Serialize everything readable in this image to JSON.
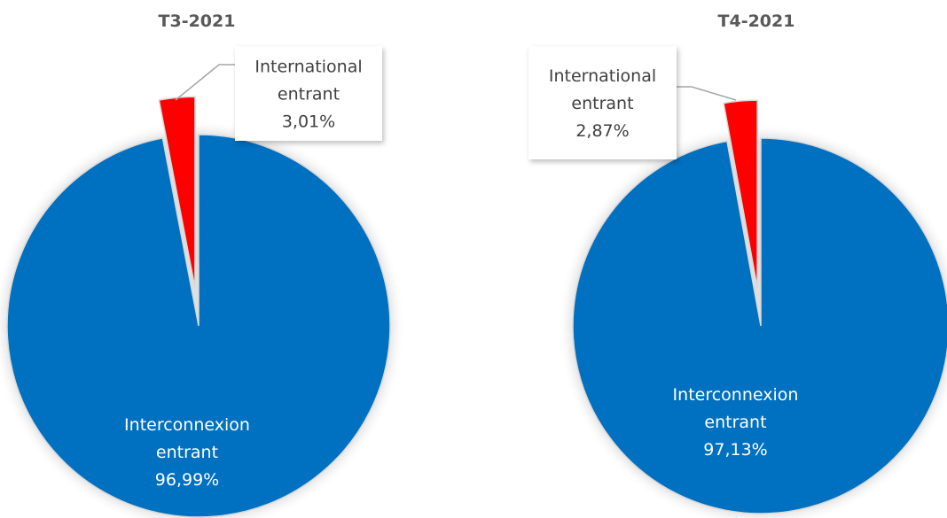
{
  "chart_data": [
    {
      "type": "pie",
      "title": "T3-2021",
      "categories": [
        "Interconnexion entrant",
        "International entrant"
      ],
      "values": [
        96.99,
        3.01
      ],
      "value_labels": [
        "96,99%",
        "3,01%"
      ],
      "colors": [
        "#0070C0",
        "#FF0000"
      ],
      "legend": "none"
    },
    {
      "type": "pie",
      "title": "T4-2021",
      "categories": [
        "Interconnexion entrant",
        "International entrant"
      ],
      "values": [
        97.13,
        2.87
      ],
      "value_labels": [
        "97,13%",
        "2,87%"
      ],
      "colors": [
        "#0070C0",
        "#FF0000"
      ],
      "legend": "none"
    }
  ]
}
